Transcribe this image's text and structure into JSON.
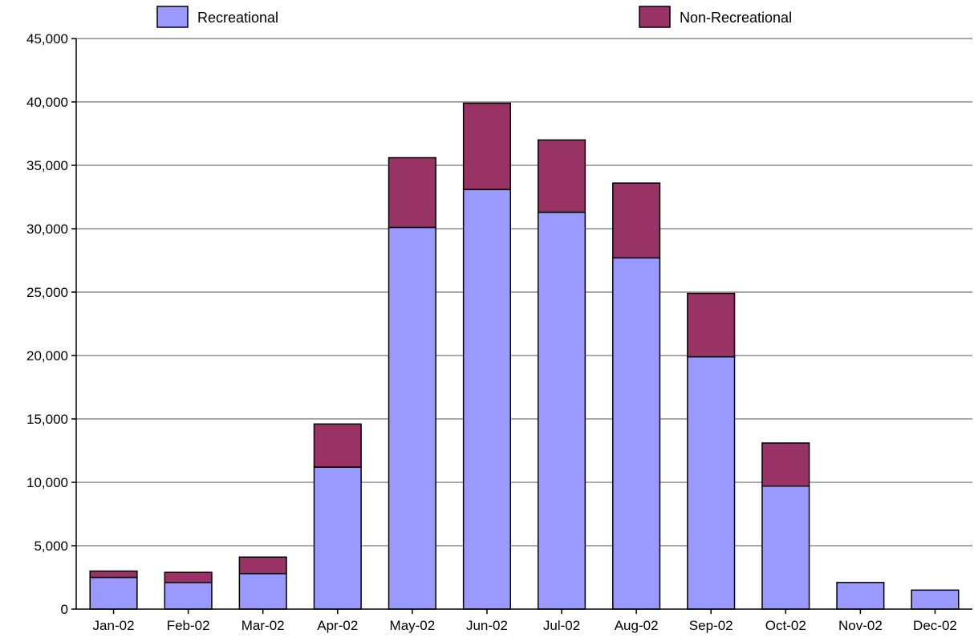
{
  "chart_data": {
    "type": "bar",
    "stacked": true,
    "categories": [
      "Jan-02",
      "Feb-02",
      "Mar-02",
      "Apr-02",
      "May-02",
      "Jun-02",
      "Jul-02",
      "Aug-02",
      "Sep-02",
      "Oct-02",
      "Nov-02",
      "Dec-02"
    ],
    "series": [
      {
        "name": "Recreational",
        "color": "#9999ff",
        "values": [
          2500,
          2100,
          2800,
          11200,
          30100,
          33100,
          31300,
          27700,
          19900,
          9700,
          2100,
          1500
        ]
      },
      {
        "name": "Non-Recreational",
        "color": "#993366",
        "values": [
          500,
          800,
          1300,
          3400,
          5500,
          6800,
          5700,
          5900,
          5000,
          3400,
          0,
          0
        ]
      }
    ],
    "ylim": [
      0,
      45000
    ],
    "yticks": [
      "0",
      "5,000",
      "10,000",
      "15,000",
      "20,000",
      "25,000",
      "30,000",
      "35,000",
      "40,000",
      "45,000"
    ],
    "grid": true,
    "legend": "top"
  }
}
